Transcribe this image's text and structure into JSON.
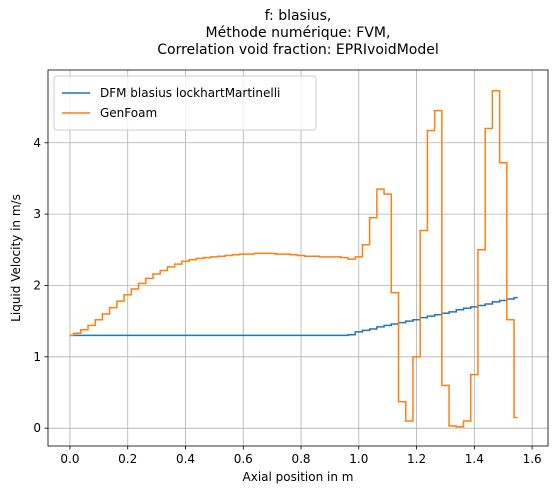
{
  "chart_data": {
    "type": "line",
    "drawstyle": "steps-mid",
    "title": "f: blasius,\nMéthode numérique: FVM,\nCorrelation void fraction: EPRIvoidModel",
    "xlabel": "Axial position in m",
    "ylabel": "Liquid Velocity in m/s",
    "x": [
      0,
      0.025,
      0.05,
      0.075,
      0.1,
      0.125,
      0.15,
      0.175,
      0.2,
      0.225,
      0.25,
      0.275,
      0.3,
      0.325,
      0.35,
      0.375,
      0.4,
      0.425,
      0.45,
      0.475,
      0.5,
      0.525,
      0.55,
      0.575,
      0.6,
      0.625,
      0.65,
      0.675,
      0.7,
      0.725,
      0.75,
      0.775,
      0.8,
      0.825,
      0.85,
      0.875,
      0.9,
      0.925,
      0.95,
      0.975,
      1.0,
      1.025,
      1.05,
      1.075,
      1.1,
      1.125,
      1.15,
      1.175,
      1.2,
      1.225,
      1.25,
      1.275,
      1.3,
      1.325,
      1.35,
      1.375,
      1.4,
      1.425,
      1.45,
      1.475,
      1.5,
      1.525,
      1.55
    ],
    "series": [
      {
        "name": "DFM blasius lockhartMartinelli",
        "color": "#1f77b4",
        "values": [
          1.3,
          1.3,
          1.3,
          1.3,
          1.3,
          1.3,
          1.3,
          1.3,
          1.3,
          1.3,
          1.3,
          1.3,
          1.3,
          1.3,
          1.3,
          1.3,
          1.3,
          1.3,
          1.3,
          1.3,
          1.3,
          1.3,
          1.3,
          1.3,
          1.3,
          1.3,
          1.3,
          1.3,
          1.3,
          1.3,
          1.3,
          1.3,
          1.3,
          1.3,
          1.3,
          1.3,
          1.3,
          1.3,
          1.3,
          1.31,
          1.35,
          1.37,
          1.39,
          1.42,
          1.44,
          1.46,
          1.48,
          1.5,
          1.52,
          1.55,
          1.57,
          1.59,
          1.61,
          1.63,
          1.66,
          1.68,
          1.7,
          1.72,
          1.74,
          1.77,
          1.79,
          1.81,
          1.83
        ]
      },
      {
        "name": "GenFoam",
        "color": "#ff7f0e",
        "values": [
          1.3,
          1.33,
          1.38,
          1.44,
          1.52,
          1.6,
          1.69,
          1.78,
          1.87,
          1.95,
          2.03,
          2.1,
          2.16,
          2.21,
          2.26,
          2.3,
          2.34,
          2.36,
          2.38,
          2.39,
          2.4,
          2.41,
          2.42,
          2.43,
          2.44,
          2.44,
          2.45,
          2.45,
          2.45,
          2.44,
          2.44,
          2.43,
          2.42,
          2.41,
          2.41,
          2.4,
          2.4,
          2.4,
          2.39,
          2.37,
          2.4,
          2.57,
          2.95,
          3.35,
          3.28,
          1.9,
          0.37,
          0.1,
          1.0,
          2.77,
          4.17,
          4.45,
          0.6,
          0.03,
          0.02,
          0.1,
          0.75,
          2.5,
          4.2,
          4.73,
          3.72,
          1.52,
          0.15
        ]
      }
    ],
    "xlim": [
      -0.076,
      1.655
    ],
    "ylim": [
      -0.25,
      5.02
    ],
    "xticks": [
      {
        "value": 0,
        "label": "0.0"
      },
      {
        "value": 0.2,
        "label": "0.2"
      },
      {
        "value": 0.4,
        "label": "0.4"
      },
      {
        "value": 0.6,
        "label": "0.6"
      },
      {
        "value": 0.8,
        "label": "0.8"
      },
      {
        "value": 1.0,
        "label": "1.0"
      },
      {
        "value": 1.2,
        "label": "1.2"
      },
      {
        "value": 1.4,
        "label": "1.4"
      },
      {
        "value": 1.6,
        "label": "1.6"
      }
    ],
    "yticks": [
      0,
      1,
      2,
      3,
      4
    ],
    "grid": true,
    "legend": "upper left"
  }
}
